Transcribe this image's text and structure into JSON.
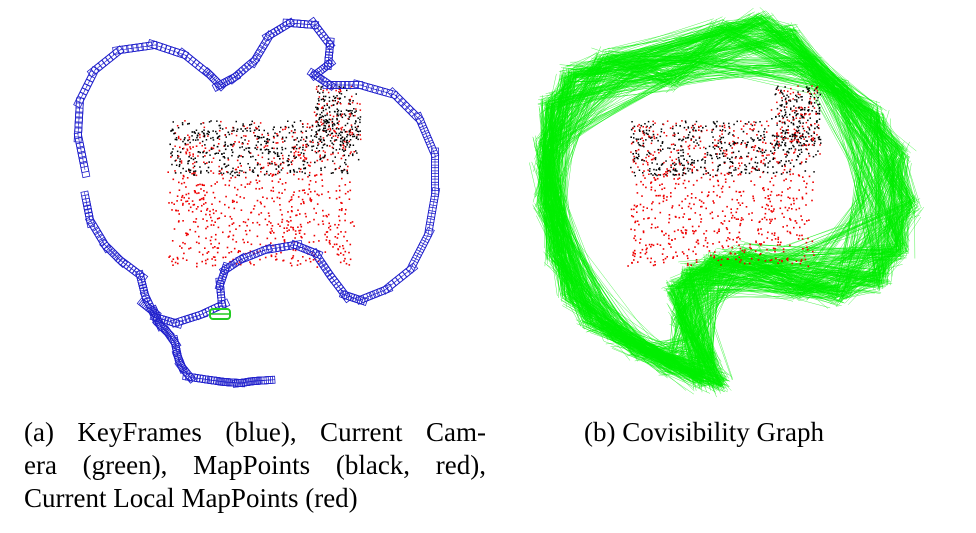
{
  "figure": {
    "panels": [
      {
        "id": "a",
        "caption_lines": [
          "(a) KeyFrames (blue), Current Cam-",
          "era (green), MapPoints (black, red),",
          "Current Local MapPoints (red)"
        ],
        "colors": {
          "keyframes": "#2222cc",
          "current_camera": "#22cc22",
          "mappoints": "#000000",
          "local_mappoints": "#ee0000"
        }
      },
      {
        "id": "b",
        "caption": "(b) Covisibility Graph",
        "colors": {
          "covisibility_edges": "#00ee00",
          "mappoints": "#000000",
          "local_mappoints": "#ee0000"
        }
      }
    ]
  }
}
